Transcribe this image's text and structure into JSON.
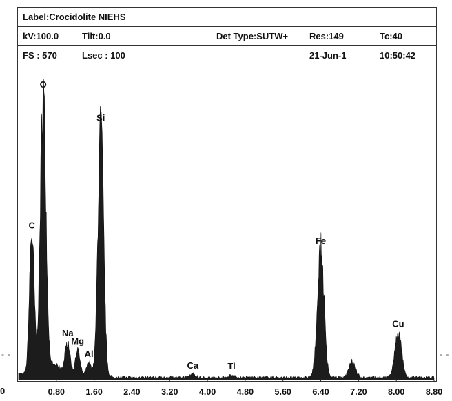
{
  "header": {
    "label": "Label:Crocidolite NIEHS",
    "kv": "kV:100.0",
    "tilt": "Tilt:0.0",
    "det_type": "Det Type:SUTW+",
    "res": "Res:149",
    "tc": "Tc:40",
    "fs": "FS : 570",
    "lsec": "Lsec : 100",
    "date": "21-Jun-1",
    "time": "10:50:42"
  },
  "outside": {
    "left_tick": "0"
  },
  "chart_data": {
    "type": "area",
    "title": "",
    "xlabel": "",
    "ylabel": "",
    "xlim": [
      0.0,
      8.8
    ],
    "ylim": [
      0,
      570
    ],
    "x_ticks": [
      "0.80",
      "1.60",
      "2.40",
      "3.20",
      "4.00",
      "4.80",
      "5.60",
      "6.40",
      "7.20",
      "8.00",
      "8.80"
    ],
    "x_tick_values": [
      0.8,
      1.6,
      2.4,
      3.2,
      4.0,
      4.8,
      5.6,
      6.4,
      7.2,
      8.0,
      8.8
    ],
    "peaks": [
      {
        "label": "C",
        "energy": 0.28,
        "height": 255,
        "width": 0.05
      },
      {
        "label": "O",
        "energy": 0.52,
        "height": 505,
        "width": 0.06
      },
      {
        "label": "Na",
        "energy": 1.04,
        "height": 62,
        "width": 0.05
      },
      {
        "label": "Mg",
        "energy": 1.25,
        "height": 48,
        "width": 0.05
      },
      {
        "label": "Al",
        "energy": 1.49,
        "height": 25,
        "width": 0.05
      },
      {
        "label": "Si",
        "energy": 1.74,
        "height": 455,
        "width": 0.06
      },
      {
        "label": "Ca",
        "energy": 3.69,
        "height": 6,
        "width": 0.06
      },
      {
        "label": "Ti",
        "energy": 4.51,
        "height": 5,
        "width": 0.06
      },
      {
        "label": "Fe",
        "energy": 6.4,
        "height": 233,
        "width": 0.07
      },
      {
        "label": "",
        "energy": 7.06,
        "height": 30,
        "width": 0.07
      },
      {
        "label": "Cu",
        "energy": 8.04,
        "height": 82,
        "width": 0.07
      }
    ],
    "grid": false,
    "legend": "none"
  }
}
